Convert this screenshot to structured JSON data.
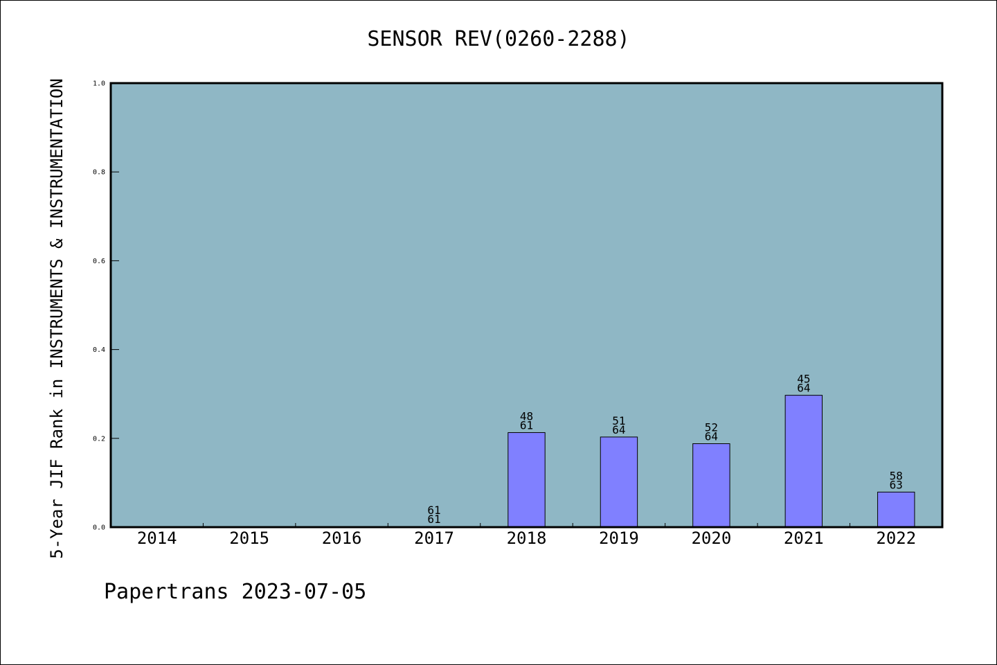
{
  "chart_data": {
    "type": "bar",
    "title": "SENSOR REV(0260-2288)",
    "xlabel": "",
    "ylabel": "5-Year JIF Rank in INSTRUMENTS & INSTRUMENTATION",
    "categories": [
      "2014",
      "2015",
      "2016",
      "2017",
      "2018",
      "2019",
      "2020",
      "2021",
      "2022"
    ],
    "values": [
      null,
      null,
      null,
      0.0,
      0.213,
      0.203,
      0.188,
      0.297,
      0.079
    ],
    "bar_labels": [
      null,
      null,
      null,
      {
        "rank": "61",
        "total": "61"
      },
      {
        "rank": "48",
        "total": "61"
      },
      {
        "rank": "51",
        "total": "64"
      },
      {
        "rank": "52",
        "total": "64"
      },
      {
        "rank": "45",
        "total": "64"
      },
      {
        "rank": "58",
        "total": "63"
      }
    ],
    "ylim": [
      0.0,
      1.0
    ],
    "y_ticks": [
      "0.0",
      "0.2",
      "0.4",
      "0.6",
      "0.8",
      "1.0"
    ],
    "grid": false,
    "legend": "none",
    "colors": {
      "plot_background": "#8fb7c5",
      "bar_fill": "#8080ff",
      "bar_edge": "#000000",
      "axes_edge": "#000000"
    }
  },
  "footer": {
    "text": "Papertrans 2023-07-05"
  }
}
